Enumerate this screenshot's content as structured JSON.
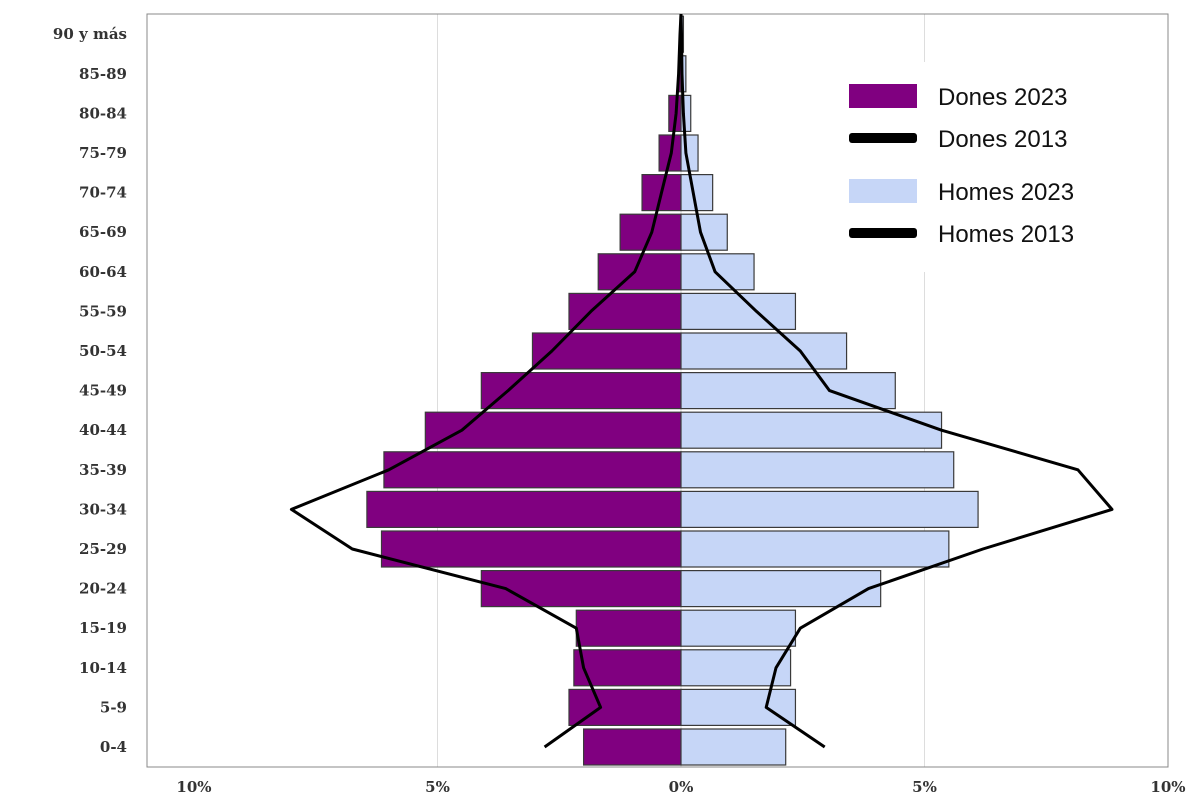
{
  "chart_data": {
    "type": "bar",
    "categories": [
      "0-4",
      "5-9",
      "10-14",
      "15-19",
      "20-24",
      "25-29",
      "30-34",
      "35-39",
      "40-44",
      "45-49",
      "50-54",
      "55-59",
      "60-64",
      "65-69",
      "70-74",
      "75-79",
      "80-84",
      "85-89",
      "90 y más"
    ],
    "series": [
      {
        "name": "Dones 2023",
        "kind": "bar",
        "side": "left",
        "color": "#800080",
        "values": [
          2.0,
          2.3,
          2.2,
          2.15,
          4.1,
          6.15,
          6.45,
          6.1,
          5.25,
          4.1,
          3.05,
          2.3,
          1.7,
          1.25,
          0.8,
          0.45,
          0.25,
          0.05,
          0.02
        ]
      },
      {
        "name": "Homes 2023",
        "kind": "bar",
        "side": "right",
        "color": "#c6d6f7",
        "values": [
          2.15,
          2.35,
          2.25,
          2.35,
          4.1,
          5.5,
          6.1,
          5.6,
          5.35,
          4.4,
          3.4,
          2.35,
          1.5,
          0.95,
          0.65,
          0.35,
          0.2,
          0.1,
          0.05
        ]
      },
      {
        "name": "Dones 2013",
        "kind": "line",
        "side": "left",
        "color": "#000000",
        "values": [
          2.8,
          1.65,
          2.0,
          2.15,
          3.6,
          6.75,
          8.0,
          6.0,
          4.5,
          3.55,
          2.65,
          1.85,
          0.95,
          0.6,
          0.4,
          0.2,
          0.1,
          0.05,
          0.02
        ]
      },
      {
        "name": "Homes 2013",
        "kind": "line",
        "side": "right",
        "color": "#000000",
        "values": [
          2.95,
          1.75,
          1.95,
          2.45,
          3.85,
          6.2,
          8.85,
          8.15,
          5.35,
          3.05,
          2.45,
          1.55,
          0.7,
          0.4,
          0.25,
          0.1,
          0.05,
          0.02,
          0.01
        ]
      }
    ],
    "xlim": [
      -10,
      10
    ],
    "xticks": [
      -10,
      -5,
      0,
      5,
      10
    ],
    "xtick_labels": [
      "10%",
      "5%",
      "0%",
      "5%",
      "10%"
    ],
    "title": "",
    "xlabel": "",
    "ylabel": "",
    "grid": "vertical",
    "legend_position": "top-right",
    "legend": [
      "Dones 2023",
      "Dones 2013",
      "Homes 2023",
      "Homes 2013"
    ]
  }
}
